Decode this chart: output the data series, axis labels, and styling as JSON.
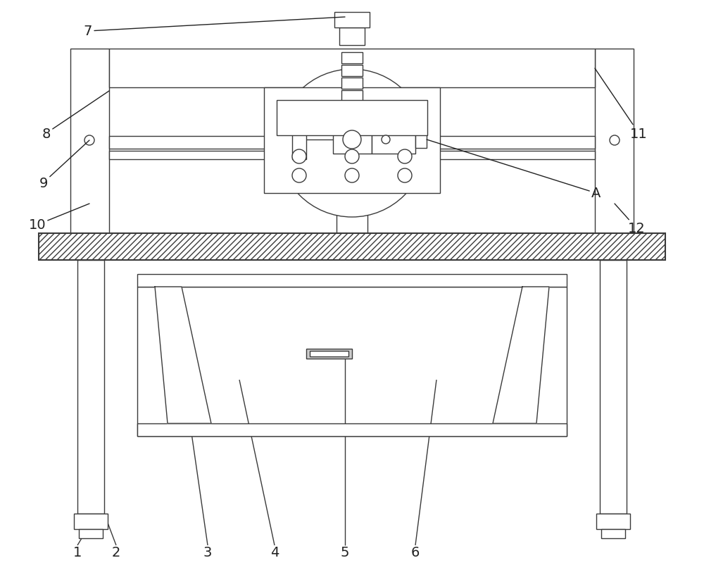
{
  "bg_color": "#ffffff",
  "line_color": "#3a3a3a",
  "label_color": "#222222",
  "fig_width": 10.0,
  "fig_height": 8.2,
  "dpi": 100
}
